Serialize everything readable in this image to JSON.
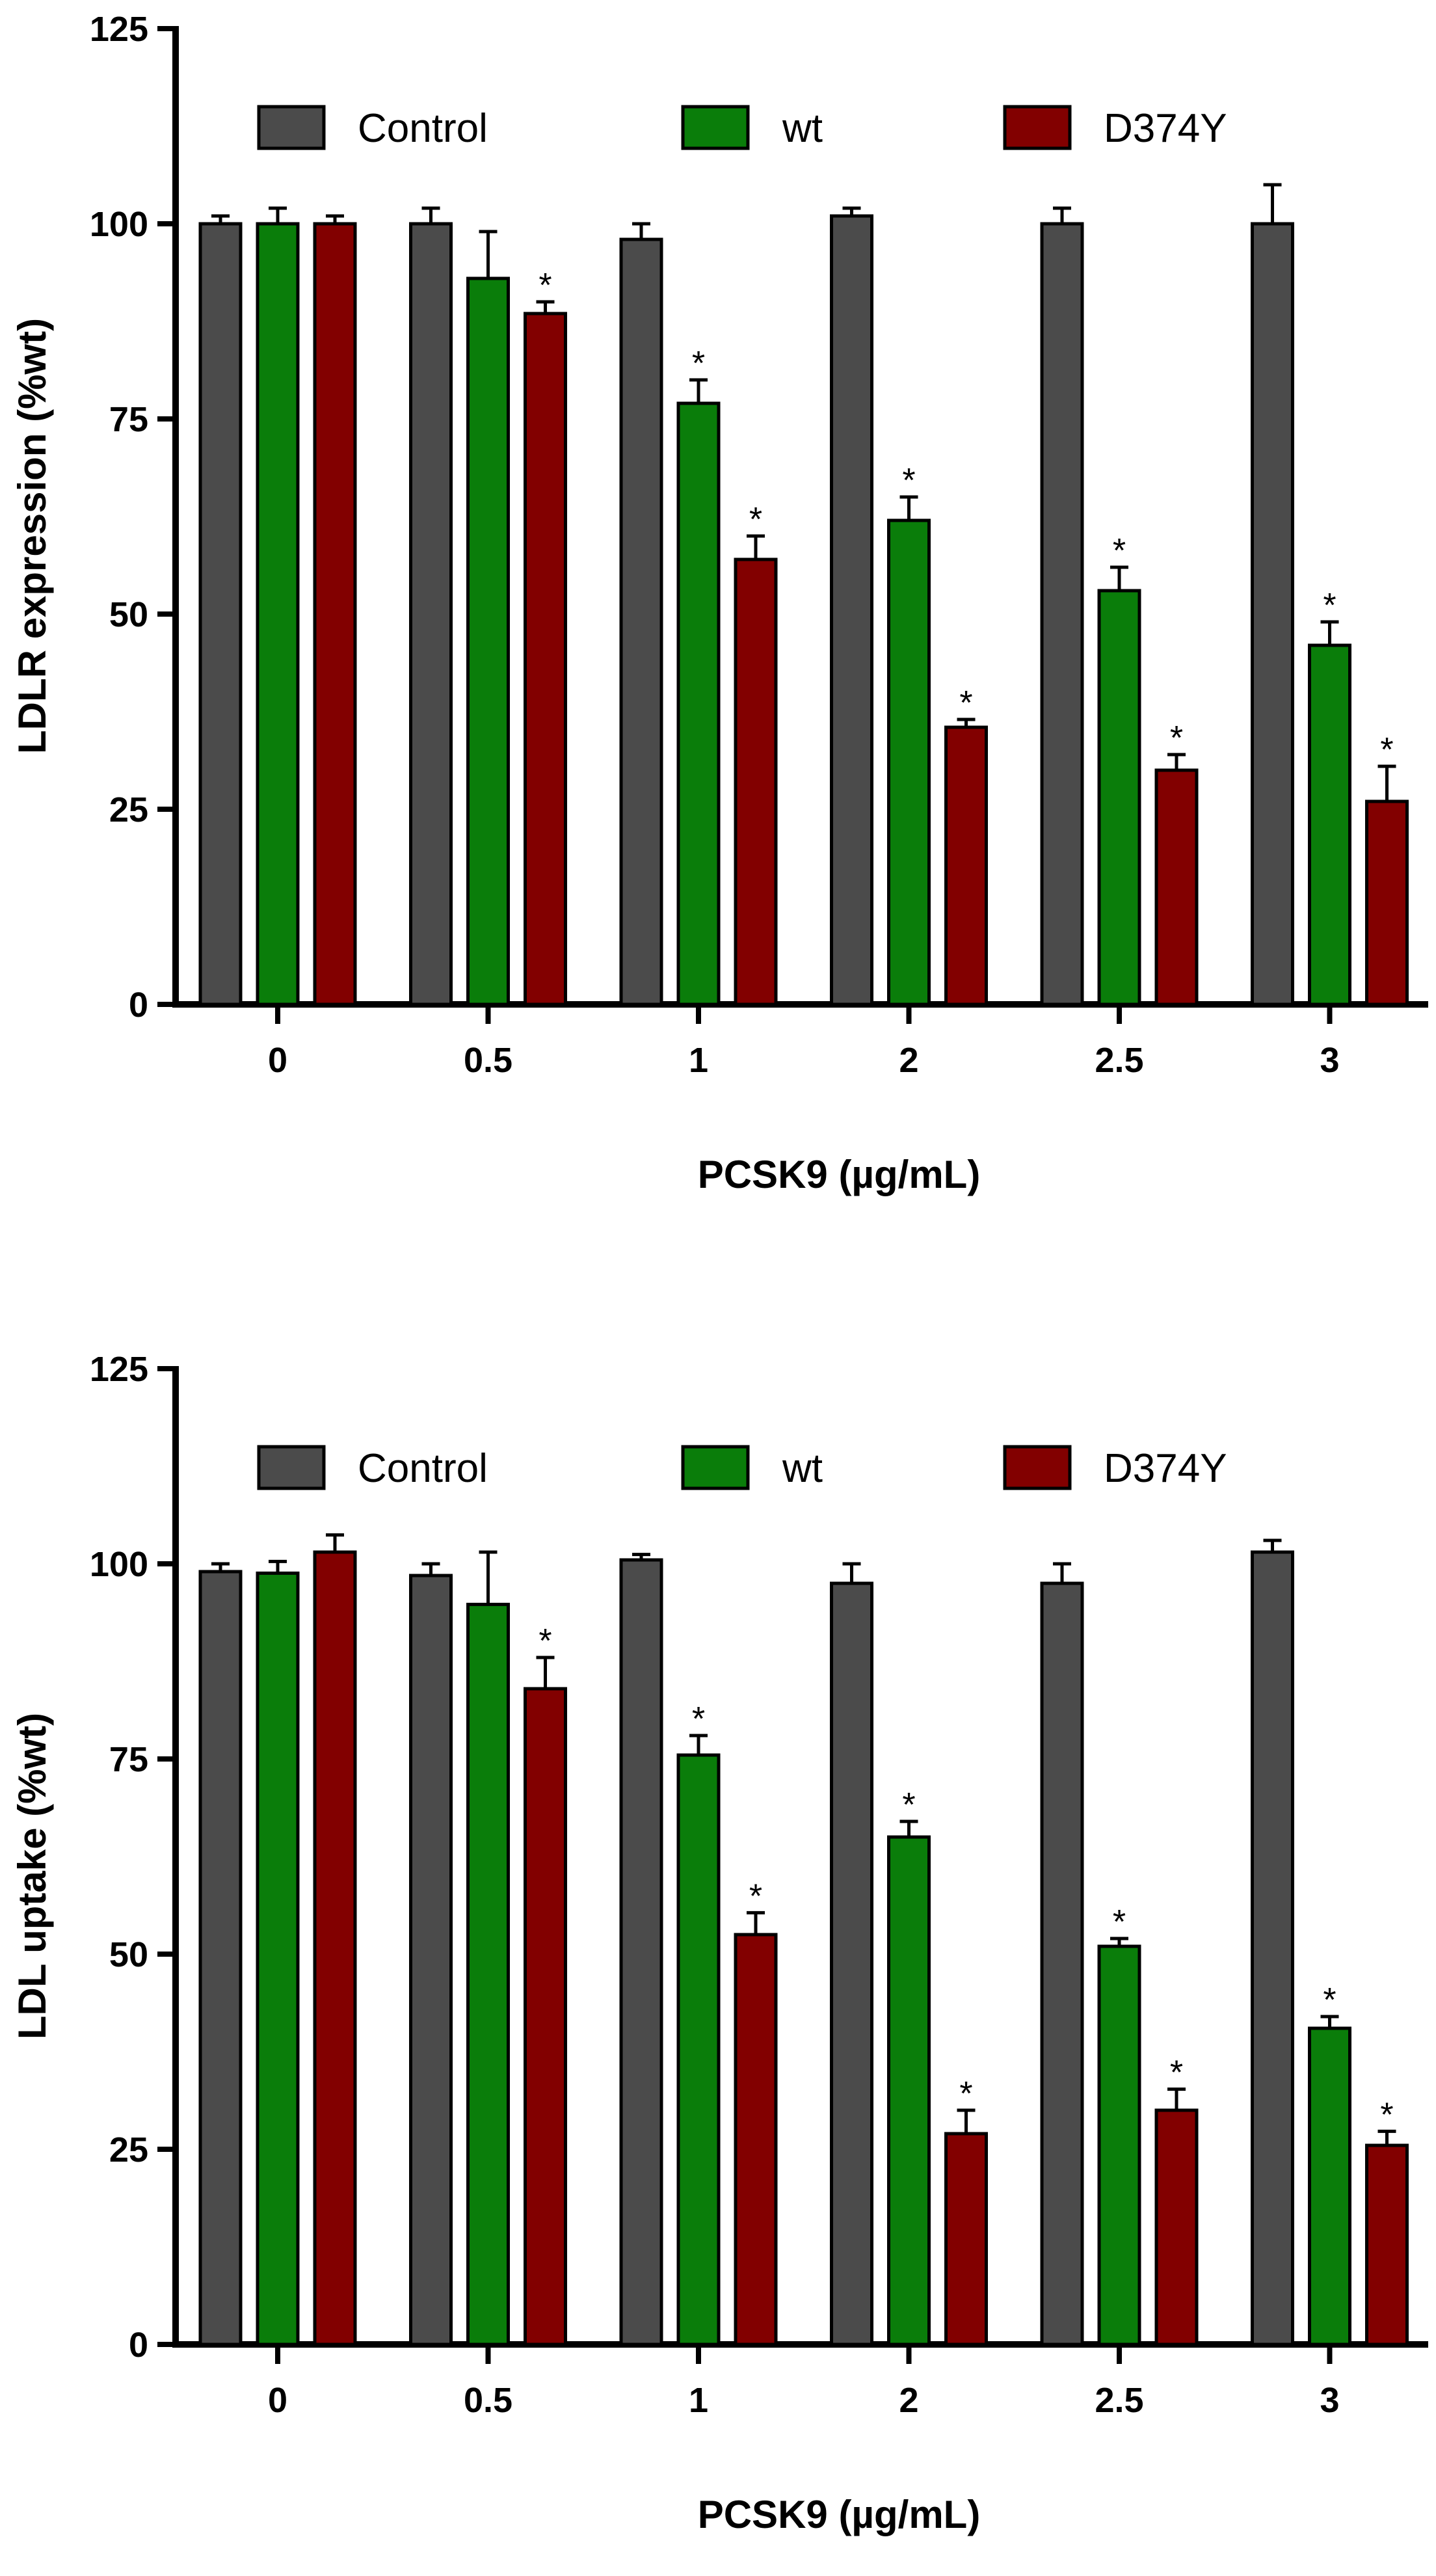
{
  "colors": {
    "Control": "#4b4b4b",
    "wt": "#0a7d0a",
    "D374Y": "#820000"
  },
  "chart_data": [
    {
      "type": "bar",
      "categories": [
        "0",
        "0.5",
        "1",
        "2",
        "2.5",
        "3"
      ],
      "ylabel": "LDLR expression (%wt)",
      "xlabel": "PCSK9 (µg/mL)",
      "ylim": [
        0,
        125
      ],
      "yticks": [
        "0",
        "25",
        "50",
        "75",
        "100",
        "125"
      ],
      "legend": [
        "Control",
        "wt",
        "D374Y"
      ],
      "legend_position": "top",
      "significance_marker": "*",
      "series": [
        {
          "name": "Control",
          "values": [
            100,
            100,
            98,
            101,
            100,
            100
          ],
          "errors": [
            1,
            2,
            2,
            1,
            2,
            5
          ],
          "sig": [
            false,
            false,
            false,
            false,
            false,
            false
          ]
        },
        {
          "name": "wt",
          "values": [
            100,
            93,
            77,
            62,
            53,
            46
          ],
          "errors": [
            2,
            6,
            3,
            3,
            3,
            3
          ],
          "sig": [
            false,
            false,
            true,
            true,
            true,
            true
          ]
        },
        {
          "name": "D374Y",
          "values": [
            100,
            88.5,
            57,
            35.5,
            30,
            26
          ],
          "errors": [
            1,
            1.5,
            3,
            1,
            2,
            4.5
          ],
          "sig": [
            false,
            true,
            true,
            true,
            true,
            true
          ]
        }
      ]
    },
    {
      "type": "bar",
      "categories": [
        "0",
        "0.5",
        "1",
        "2",
        "2.5",
        "3"
      ],
      "ylabel": "LDL uptake (%wt)",
      "xlabel": "PCSK9 (µg/mL)",
      "ylim": [
        0,
        125
      ],
      "yticks": [
        "0",
        "25",
        "50",
        "75",
        "100",
        "125"
      ],
      "legend": [
        "Control",
        "wt",
        "D374Y"
      ],
      "legend_position": "top",
      "significance_marker": "*",
      "series": [
        {
          "name": "Control",
          "values": [
            99,
            98.5,
            100.5,
            97.5,
            97.5,
            101.5
          ],
          "errors": [
            1,
            1.5,
            0.7,
            2.5,
            2.5,
            1.5
          ],
          "sig": [
            false,
            false,
            false,
            false,
            false,
            false
          ]
        },
        {
          "name": "wt",
          "values": [
            98.8,
            94.8,
            75.5,
            65,
            51,
            40.5
          ],
          "errors": [
            1.5,
            6.7,
            2.5,
            2,
            1,
            1.5
          ],
          "sig": [
            false,
            false,
            true,
            true,
            true,
            true
          ]
        },
        {
          "name": "D374Y",
          "values": [
            101.5,
            84,
            52.5,
            27,
            30,
            25.5
          ],
          "errors": [
            2.2,
            4,
            2.8,
            3,
            2.7,
            1.8
          ],
          "sig": [
            false,
            true,
            true,
            true,
            true,
            true
          ]
        }
      ]
    }
  ]
}
